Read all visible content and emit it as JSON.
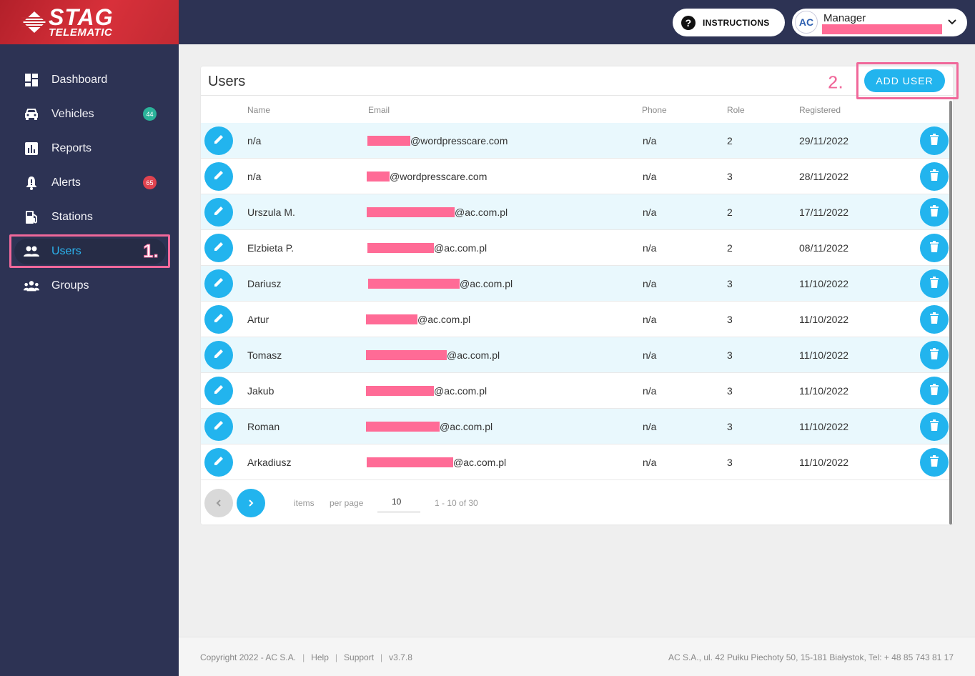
{
  "brand": {
    "line1": "STAG",
    "line2": "TELEMATIC"
  },
  "colors": {
    "accent": "#22b4ee",
    "sidebar": "#2d3354",
    "annotation": "#f0689a",
    "redaction": "#ff6b96",
    "badge_green": "#2bb39a",
    "badge_red": "#e0434f"
  },
  "sidebar": {
    "items": [
      {
        "label": "Dashboard",
        "icon": "dashboard-icon"
      },
      {
        "label": "Vehicles",
        "icon": "car-icon",
        "badge": "44"
      },
      {
        "label": "Reports",
        "icon": "reports-icon"
      },
      {
        "label": "Alerts",
        "icon": "bell-icon",
        "badge": "65"
      },
      {
        "label": "Stations",
        "icon": "fuel-station-icon"
      },
      {
        "label": "Users",
        "icon": "users-icon",
        "active": true
      },
      {
        "label": "Groups",
        "icon": "groups-icon"
      }
    ]
  },
  "annotations": {
    "step1": "1.",
    "step2": "2."
  },
  "header": {
    "instructions_label": "INSTRUCTIONS",
    "user_role": "Manager",
    "company_logo": "AC"
  },
  "users_card": {
    "title": "Users",
    "add_button": "ADD USER",
    "columns": {
      "name": "Name",
      "email": "Email",
      "phone": "Phone",
      "role": "Role",
      "registered": "Registered"
    },
    "rows": [
      {
        "name": "n/a",
        "email_domain": "@wordpresscare.com",
        "phone": "n/a",
        "role": "2",
        "registered": "29/11/2022"
      },
      {
        "name": "n/a",
        "email_domain": "@wordpresscare.com",
        "phone": "n/a",
        "role": "3",
        "registered": "28/11/2022"
      },
      {
        "name": "Urszula M.",
        "email_domain": "@ac.com.pl",
        "phone": "n/a",
        "role": "2",
        "registered": "17/11/2022"
      },
      {
        "name": "Elzbieta P.",
        "email_domain": "@ac.com.pl",
        "phone": "n/a",
        "role": "2",
        "registered": "08/11/2022"
      },
      {
        "name": "Dariusz",
        "email_domain": "@ac.com.pl",
        "phone": "n/a",
        "role": "3",
        "registered": "11/10/2022"
      },
      {
        "name": "Artur",
        "email_domain": "@ac.com.pl",
        "phone": "n/a",
        "role": "3",
        "registered": "11/10/2022"
      },
      {
        "name": "Tomasz",
        "email_domain": "@ac.com.pl",
        "phone": "n/a",
        "role": "3",
        "registered": "11/10/2022"
      },
      {
        "name": "Jakub",
        "email_domain": "@ac.com.pl",
        "phone": "n/a",
        "role": "3",
        "registered": "11/10/2022"
      },
      {
        "name": "Roman",
        "email_domain": "@ac.com.pl",
        "phone": "n/a",
        "role": "3",
        "registered": "11/10/2022"
      },
      {
        "name": "Arkadiusz",
        "email_domain": "@ac.com.pl",
        "phone": "n/a",
        "role": "3",
        "registered": "11/10/2022"
      }
    ],
    "pagination": {
      "items_label": "items",
      "per_page_label": "per page",
      "per_page_value": "10",
      "range": "1 - 10 of 30"
    }
  },
  "footer": {
    "copyright": "Copyright 2022 - AC S.A.",
    "help": "Help",
    "support": "Support",
    "version": "v3.7.8",
    "address": "AC S.A., ul. 42 Pułku Piechoty 50, 15-181 Białystok, Tel: + 48 85 743 81 17"
  }
}
